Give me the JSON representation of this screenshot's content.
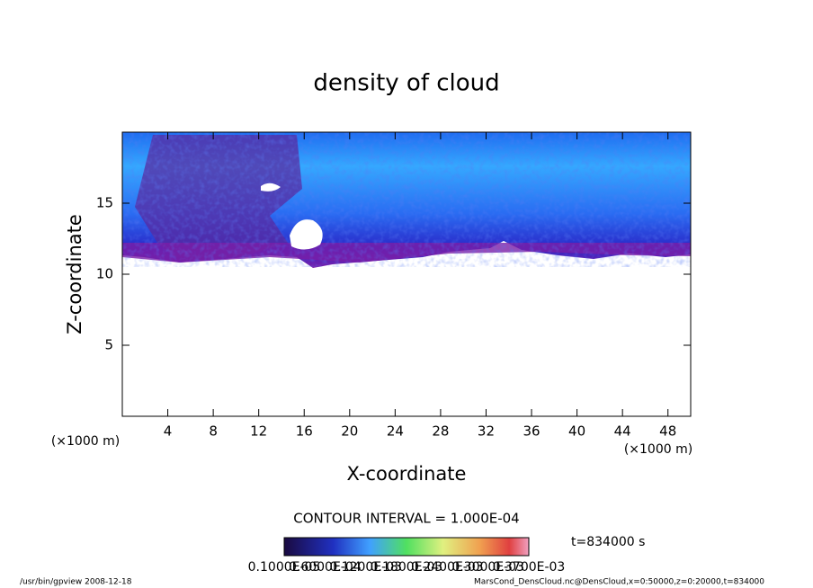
{
  "chart_data": {
    "type": "heatmap",
    "title": "density of cloud",
    "x_label": "X-coordinate",
    "y_label": "Z-coordinate",
    "x_unit": "(×1000 m)",
    "y_unit": "(×1000 m)",
    "xlim": [
      0,
      50
    ],
    "xticks": [
      4,
      8,
      12,
      16,
      20,
      24,
      28,
      32,
      36,
      40,
      44,
      48
    ],
    "ylim": [
      0,
      20
    ],
    "yticks": [
      5,
      10,
      15
    ],
    "contour_interval": "CONTOUR INTERVAL = 1.000E-04",
    "time": "t=834000 s",
    "colorbar": {
      "labels": [
        "0.1000E-05",
        "0.6000E-04",
        "0.1200E-03",
        "0.1800E-03",
        "0.2400E-03",
        "0.3000E-03",
        "0.3700E-03"
      ]
    },
    "footer_left": "/usr/bin/gpview   2008-12-18",
    "footer_right": "MarsCond_DensCloud.nc@DensCloud,x=0:50000,z=0:20000,t=834000"
  }
}
